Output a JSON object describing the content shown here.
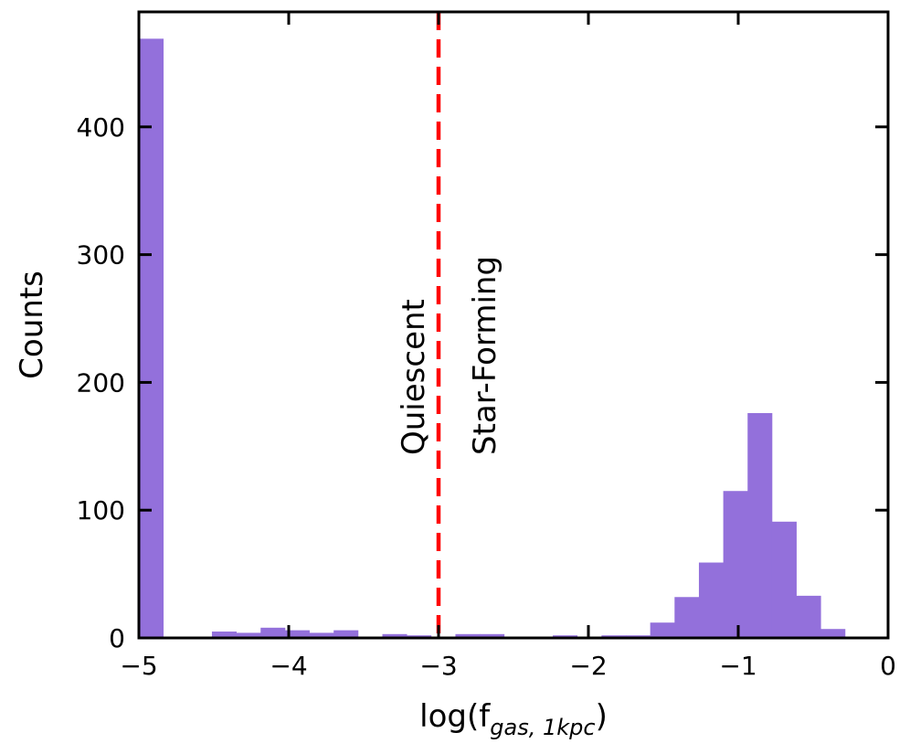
{
  "chart_data": {
    "type": "bar",
    "xlabel_main": "log(f",
    "xlabel_sub": "gas, 1kpc",
    "xlabel_end": ")",
    "ylabel": "Counts",
    "xlim": [
      -5,
      0
    ],
    "ylim": [
      0,
      490
    ],
    "xticks": [
      -5,
      -4,
      -3,
      -2,
      -1,
      0
    ],
    "xtick_labels": [
      "−5",
      "−4",
      "−3",
      "−2",
      "−1",
      "0"
    ],
    "yticks": [
      0,
      100,
      200,
      300,
      400
    ],
    "ytick_labels": [
      "0",
      "100",
      "200",
      "300",
      "400"
    ],
    "bin_width": 0.1625,
    "bins": [
      {
        "x0": -5.0,
        "count": 469
      },
      {
        "x0": -4.8375,
        "count": 0
      },
      {
        "x0": -4.675,
        "count": 0
      },
      {
        "x0": -4.5125,
        "count": 5
      },
      {
        "x0": -4.35,
        "count": 4
      },
      {
        "x0": -4.1875,
        "count": 8
      },
      {
        "x0": -4.025,
        "count": 6
      },
      {
        "x0": -3.8625,
        "count": 4
      },
      {
        "x0": -3.7,
        "count": 6
      },
      {
        "x0": -3.5375,
        "count": 0
      },
      {
        "x0": -3.375,
        "count": 3
      },
      {
        "x0": -3.2125,
        "count": 2
      },
      {
        "x0": -3.05,
        "count": 1
      },
      {
        "x0": -2.8875,
        "count": 3
      },
      {
        "x0": -2.725,
        "count": 3
      },
      {
        "x0": -2.5625,
        "count": 1
      },
      {
        "x0": -2.4,
        "count": 1
      },
      {
        "x0": -2.2375,
        "count": 2
      },
      {
        "x0": -2.075,
        "count": 1
      },
      {
        "x0": -1.9125,
        "count": 2
      },
      {
        "x0": -1.75,
        "count": 2
      },
      {
        "x0": -1.5875,
        "count": 12
      },
      {
        "x0": -1.425,
        "count": 32
      },
      {
        "x0": -1.2625,
        "count": 59
      },
      {
        "x0": -1.1,
        "count": 115
      },
      {
        "x0": -0.9375,
        "count": 176
      },
      {
        "x0": -0.775,
        "count": 91
      },
      {
        "x0": -0.6125,
        "count": 33
      },
      {
        "x0": -0.45,
        "count": 7
      }
    ],
    "threshold_x": -3,
    "annotations": [
      {
        "text": "Quiescent",
        "side": "left"
      },
      {
        "text": "Star-Forming",
        "side": "right"
      }
    ],
    "colors": {
      "bar": "#9370DB",
      "threshold": "#FF0000",
      "axis": "#000000"
    },
    "grid": false,
    "legend": "none"
  }
}
